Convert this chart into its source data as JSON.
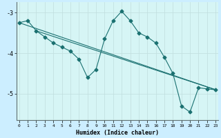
{
  "xlabel": "Humidex (Indice chaleur)",
  "background_color": "#cceeff",
  "plot_bg_color": "#d6f5f5",
  "line_color": "#1a7070",
  "grid_color": "#c0dede",
  "x": [
    0,
    1,
    2,
    3,
    4,
    5,
    6,
    7,
    8,
    9,
    10,
    11,
    12,
    13,
    14,
    15,
    16,
    17,
    18,
    19,
    20,
    21,
    22,
    23
  ],
  "y_series1": [
    -3.25,
    -3.2,
    -3.45,
    -3.6,
    -3.75,
    -3.85,
    -3.95,
    -4.15,
    -4.6,
    -4.4,
    -3.65,
    -3.2,
    -2.97,
    -3.2,
    -3.5,
    -3.6,
    -3.75,
    -4.1,
    -4.5,
    -5.3,
    -5.45,
    -4.85,
    -4.88,
    -4.9
  ],
  "y_line1_x": [
    0,
    23
  ],
  "y_line1_y": [
    -3.25,
    -4.9
  ],
  "y_line2_x": [
    2,
    23
  ],
  "y_line2_y": [
    -3.45,
    -4.9
  ],
  "ylim": [
    -5.65,
    -2.75
  ],
  "xlim": [
    -0.3,
    23.3
  ],
  "yticks": [
    -5,
    -4,
    -3
  ],
  "xticks": [
    0,
    1,
    2,
    3,
    4,
    5,
    6,
    7,
    8,
    9,
    10,
    11,
    12,
    13,
    14,
    15,
    16,
    17,
    18,
    19,
    20,
    21,
    22,
    23
  ]
}
